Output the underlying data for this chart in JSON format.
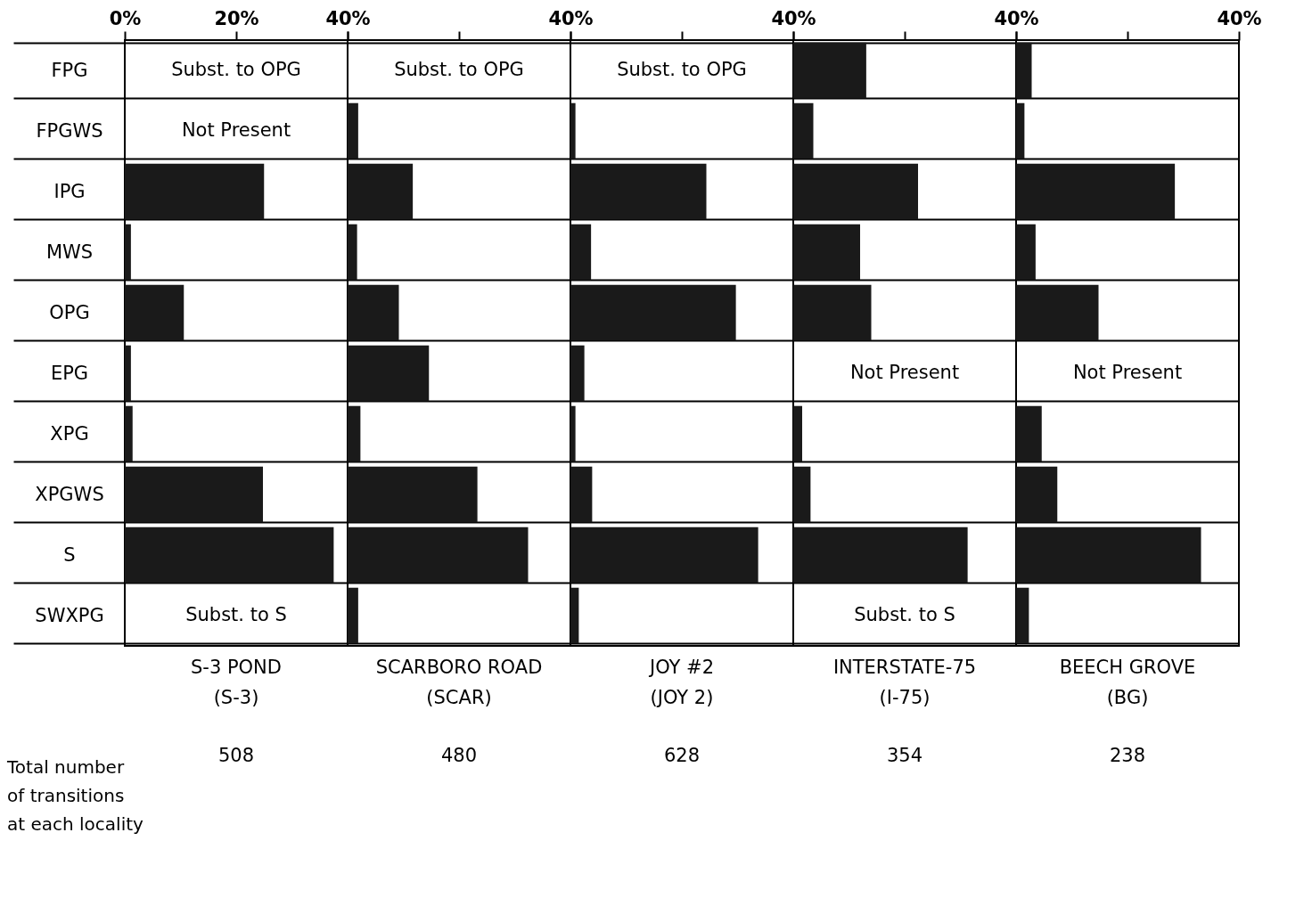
{
  "chart_data": [
    {
      "type": "bar",
      "orientation": "horizontal",
      "title": "S-3 POND\n(S-3)",
      "subtitle": "508",
      "categories": [
        "FPG",
        "FPGWS",
        "IPG",
        "MWS",
        "OPG",
        "EPG",
        "XPG",
        "XPGWS",
        "S",
        "SWXPG"
      ],
      "values": [
        null,
        null,
        25,
        1.1,
        10.6,
        1.1,
        1.4,
        24.8,
        37.5,
        null
      ],
      "color": "#1a1a1a",
      "xlim": [
        0,
        40
      ],
      "xticks": [
        {
          "value": 0,
          "label": "0%"
        },
        {
          "value": 20,
          "label": "20%"
        },
        {
          "value": 40,
          "label": "40%"
        }
      ],
      "grid": "y",
      "annotations": [
        "Subst. to OPG",
        "Not Present",
        "Subst. to S",
        "Total number\nof transitions\nat each locality"
      ]
    },
    {
      "type": "bar",
      "orientation": "horizontal",
      "title": "SCARBORO ROAD\n(SCAR)",
      "subtitle": "480",
      "categories": [
        null,
        null,
        null,
        null,
        null,
        null,
        null,
        null,
        null,
        null
      ],
      "values": [
        null,
        1.9,
        11.7,
        1.7,
        9.2,
        14.6,
        2.3,
        23.3,
        32.4,
        1.9
      ],
      "color": "#1a1a1a",
      "xlim": [
        0,
        40
      ],
      "xticks": [
        {
          "value": 0,
          "label": null
        },
        {
          "value": 20,
          "label": null
        },
        {
          "value": 40,
          "label": "40%"
        }
      ],
      "grid": "y",
      "tick_labels": "x",
      "annotations": [
        "Subst. to OPG"
      ]
    },
    {
      "type": "bar",
      "orientation": "horizontal",
      "title": "JOY #2\n(JOY 2)",
      "subtitle": "628",
      "categories": [
        null,
        null,
        null,
        null,
        null,
        null,
        null,
        null,
        null,
        null
      ],
      "values": [
        null,
        0.9,
        24.4,
        3.7,
        29.7,
        2.5,
        0.9,
        3.9,
        33.7,
        1.5
      ],
      "color": "#1a1a1a",
      "xlim": [
        0,
        40
      ],
      "xticks": [
        {
          "value": 0,
          "label": null
        },
        {
          "value": 20,
          "label": null
        },
        {
          "value": 40,
          "label": "40%"
        }
      ],
      "grid": "y",
      "tick_labels": "x",
      "annotations": [
        "Subst. to OPG"
      ]
    },
    {
      "type": "bar",
      "orientation": "horizontal",
      "title": "INTERSTATE-75\n(I-75)",
      "subtitle": "354",
      "categories": [
        null,
        null,
        null,
        null,
        null,
        null,
        null,
        null,
        null,
        null
      ],
      "values": [
        13.1,
        3.6,
        22.4,
        12,
        14,
        null,
        1.6,
        3.1,
        31.3,
        null
      ],
      "color": "#1a1a1a",
      "xlim": [
        0,
        40
      ],
      "xticks": [
        {
          "value": 0,
          "label": null
        },
        {
          "value": 20,
          "label": null
        },
        {
          "value": 40,
          "label": "40%"
        }
      ],
      "grid": "y",
      "tick_labels": "x",
      "annotations": [
        "Not Present",
        "Subst. to S"
      ]
    },
    {
      "type": "bar",
      "orientation": "horizontal",
      "title": "BEECH GROVE\n(BG)",
      "subtitle": "238",
      "categories": [
        null,
        null,
        null,
        null,
        null,
        null,
        null,
        null,
        null,
        null
      ],
      "values": [
        2.8,
        1.5,
        28.5,
        3.5,
        14.8,
        null,
        4.6,
        7.4,
        33.2,
        2.3
      ],
      "color": "#1a1a1a",
      "xlim": [
        0,
        40
      ],
      "xticks": [
        {
          "value": 0,
          "label": null
        },
        {
          "value": 20,
          "label": null
        },
        {
          "value": 40,
          "label": "40%"
        }
      ],
      "grid": "y",
      "tick_labels": "x",
      "annotations": [
        "Not Present"
      ]
    }
  ]
}
